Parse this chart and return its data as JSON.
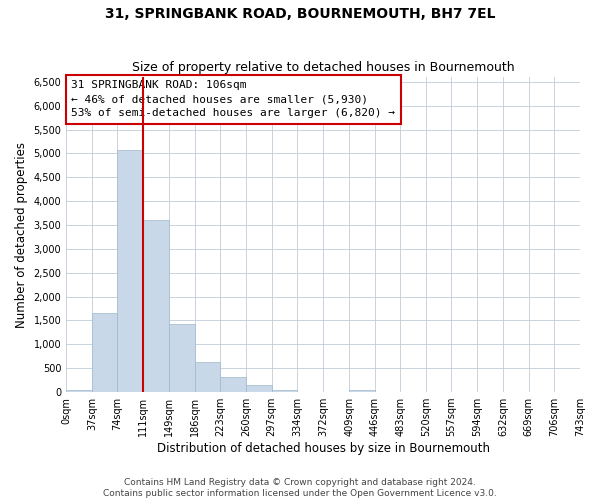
{
  "title": "31, SPRINGBANK ROAD, BOURNEMOUTH, BH7 7EL",
  "subtitle": "Size of property relative to detached houses in Bournemouth",
  "xlabel": "Distribution of detached houses by size in Bournemouth",
  "ylabel": "Number of detached properties",
  "bin_edges": [
    0,
    37,
    74,
    111,
    149,
    186,
    223,
    260,
    297,
    334,
    372,
    409,
    446,
    483,
    520,
    557,
    594,
    632,
    669,
    706,
    743
  ],
  "bin_counts": [
    50,
    1650,
    5080,
    3600,
    1430,
    620,
    310,
    150,
    50,
    0,
    0,
    50,
    0,
    0,
    0,
    0,
    0,
    0,
    0,
    0
  ],
  "bar_color": "#c8d8e8",
  "bar_edge_color": "#a0b8cc",
  "vline_x": 111,
  "vline_color": "#cc0000",
  "annotation_line1": "31 SPRINGBANK ROAD: 106sqm",
  "annotation_line2": "← 46% of detached houses are smaller (5,930)",
  "annotation_line3": "53% of semi-detached houses are larger (6,820) →",
  "annotation_box_color": "#ffffff",
  "annotation_box_edge_color": "#cc0000",
  "ylim": [
    0,
    6600
  ],
  "yticks": [
    0,
    500,
    1000,
    1500,
    2000,
    2500,
    3000,
    3500,
    4000,
    4500,
    5000,
    5500,
    6000,
    6500
  ],
  "xtick_labels": [
    "0sqm",
    "37sqm",
    "74sqm",
    "111sqm",
    "149sqm",
    "186sqm",
    "223sqm",
    "260sqm",
    "297sqm",
    "334sqm",
    "372sqm",
    "409sqm",
    "446sqm",
    "483sqm",
    "520sqm",
    "557sqm",
    "594sqm",
    "632sqm",
    "669sqm",
    "706sqm",
    "743sqm"
  ],
  "footer_line1": "Contains HM Land Registry data © Crown copyright and database right 2024.",
  "footer_line2": "Contains public sector information licensed under the Open Government Licence v3.0.",
  "background_color": "#ffffff",
  "grid_color": "#c0ccd8",
  "title_fontsize": 10,
  "subtitle_fontsize": 9,
  "axis_label_fontsize": 8.5,
  "tick_fontsize": 7,
  "annotation_fontsize": 8,
  "footer_fontsize": 6.5
}
